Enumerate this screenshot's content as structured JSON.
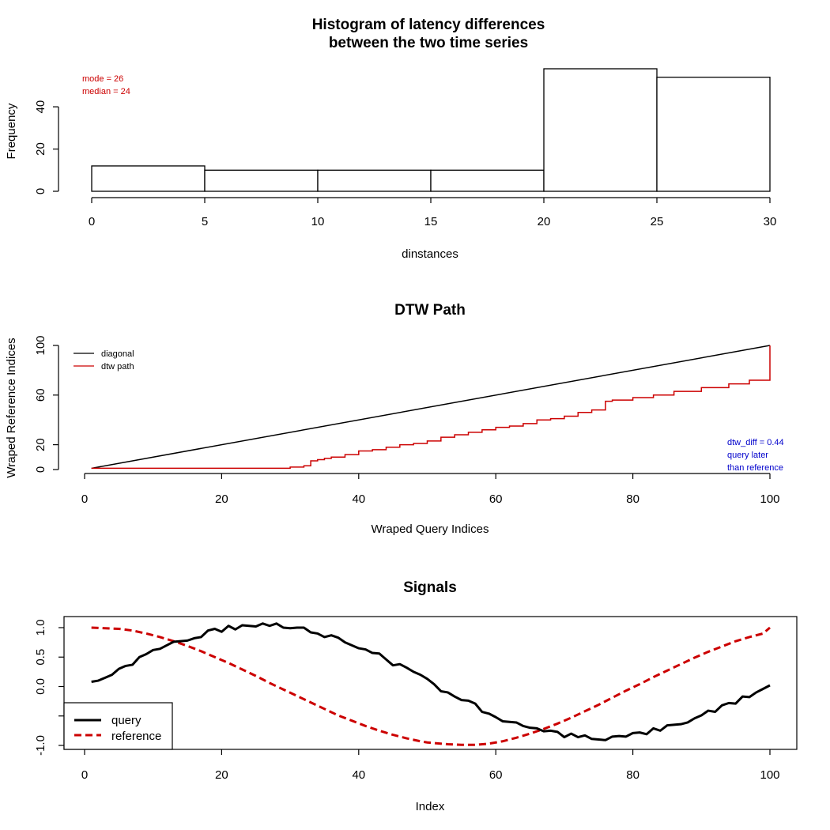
{
  "chart_data": [
    {
      "type": "bar",
      "title_lines": [
        "Histogram of latency differences",
        "between the two time series"
      ],
      "xlabel": "dinstances",
      "ylabel": "Frequency",
      "bins": [
        [
          0,
          5
        ],
        [
          5,
          10
        ],
        [
          10,
          15
        ],
        [
          15,
          20
        ],
        [
          20,
          25
        ],
        [
          25,
          30
        ]
      ],
      "values": [
        12,
        10,
        10,
        10,
        58,
        54
      ],
      "xticks": [
        0,
        5,
        10,
        15,
        20,
        25,
        30
      ],
      "yticks": [
        0,
        20,
        40
      ],
      "xlim": [
        0,
        30
      ],
      "ylim": [
        0,
        58
      ],
      "annotations": [
        {
          "text": "mode = 26",
          "color": "#cc0000"
        },
        {
          "text": "median = 24",
          "color": "#cc0000"
        }
      ]
    },
    {
      "type": "line",
      "title": "DTW Path",
      "xlabel": "Wraped Query Indices",
      "ylabel": "Wraped Reference Indices",
      "xticks": [
        0,
        20,
        40,
        60,
        80,
        100
      ],
      "yticks": [
        0,
        20,
        60,
        100
      ],
      "xlim": [
        1,
        100
      ],
      "ylim": [
        1,
        100
      ],
      "legend_position": "top-left",
      "series": [
        {
          "name": "diagonal",
          "color": "#000000",
          "x": [
            1,
            100
          ],
          "y": [
            1,
            100
          ]
        },
        {
          "name": "dtw path",
          "color": "#cc0000",
          "x": [
            1,
            29,
            30,
            32,
            33,
            34,
            35,
            36,
            38,
            40,
            42,
            44,
            46,
            48,
            50,
            52,
            54,
            56,
            58,
            60,
            62,
            64,
            66,
            68,
            70,
            72,
            74,
            76,
            77,
            80,
            83,
            86,
            90,
            94,
            97,
            100,
            100
          ],
          "y": [
            1,
            1,
            2,
            3,
            7,
            8,
            9,
            10,
            12,
            15,
            16,
            18,
            20,
            21,
            23,
            26,
            28,
            30,
            32,
            34,
            35,
            37,
            40,
            41,
            43,
            46,
            48,
            55,
            56,
            58,
            60,
            63,
            66,
            69,
            72,
            75,
            100
          ]
        }
      ],
      "annotations": [
        {
          "text": "dtw_diff = 0.44",
          "color": "#0000cc"
        },
        {
          "text": "query later",
          "color": "#0000cc"
        },
        {
          "text": "than reference",
          "color": "#0000cc"
        }
      ]
    },
    {
      "type": "line",
      "title": "Signals",
      "xlabel": "Index",
      "ylabel": "",
      "xticks": [
        0,
        20,
        40,
        60,
        80,
        100
      ],
      "yticks": [
        -1.0,
        -0.5,
        0.0,
        0.5,
        1.0
      ],
      "ytick_labels": [
        "-1.0",
        "",
        "0.0",
        "0.5",
        "1.0"
      ],
      "xlim": [
        1,
        100
      ],
      "ylim": [
        -1.0,
        1.1
      ],
      "legend_position": "bottom-left",
      "series": [
        {
          "name": "query",
          "color": "#000000",
          "dash": "solid",
          "x": [
            1,
            2,
            3,
            4,
            5,
            6,
            7,
            8,
            9,
            10,
            11,
            12,
            13,
            14,
            15,
            16,
            17,
            18,
            19,
            20,
            21,
            22,
            23,
            24,
            25,
            26,
            27,
            28,
            29,
            30,
            31,
            32,
            33,
            34,
            35,
            36,
            37,
            38,
            39,
            40,
            41,
            42,
            43,
            44,
            45,
            46,
            47,
            48,
            49,
            50,
            51,
            52,
            53,
            54,
            55,
            56,
            57,
            58,
            59,
            60,
            61,
            62,
            63,
            64,
            65,
            66,
            67,
            68,
            69,
            70,
            71,
            72,
            73,
            74,
            75,
            76,
            77,
            78,
            79,
            80,
            81,
            82,
            83,
            84,
            85,
            86,
            87,
            88,
            89,
            90,
            91,
            92,
            93,
            94,
            95,
            96,
            97,
            98,
            99,
            100
          ],
          "y": [
            0.08,
            0.1,
            0.15,
            0.2,
            0.3,
            0.35,
            0.37,
            0.5,
            0.55,
            0.62,
            0.64,
            0.7,
            0.76,
            0.77,
            0.78,
            0.82,
            0.84,
            0.95,
            0.98,
            0.93,
            1.03,
            0.97,
            1.04,
            1.03,
            1.02,
            1.07,
            1.03,
            1.07,
            1.0,
            0.99,
            1.0,
            1.0,
            0.92,
            0.9,
            0.84,
            0.87,
            0.83,
            0.75,
            0.7,
            0.65,
            0.63,
            0.57,
            0.56,
            0.46,
            0.36,
            0.38,
            0.32,
            0.25,
            0.2,
            0.13,
            0.04,
            -0.08,
            -0.1,
            -0.17,
            -0.23,
            -0.24,
            -0.29,
            -0.43,
            -0.46,
            -0.52,
            -0.59,
            -0.6,
            -0.61,
            -0.67,
            -0.7,
            -0.71,
            -0.76,
            -0.75,
            -0.77,
            -0.86,
            -0.8,
            -0.86,
            -0.83,
            -0.89,
            -0.9,
            -0.91,
            -0.85,
            -0.84,
            -0.85,
            -0.79,
            -0.78,
            -0.81,
            -0.71,
            -0.75,
            -0.66,
            -0.65,
            -0.64,
            -0.61,
            -0.54,
            -0.49,
            -0.41,
            -0.43,
            -0.32,
            -0.28,
            -0.29,
            -0.17,
            -0.18,
            -0.1,
            -0.04,
            0.02
          ]
        },
        {
          "name": "reference",
          "color": "#cc0000",
          "dash": "dashed",
          "x": [
            1,
            3,
            5,
            7,
            9,
            11,
            13,
            15,
            17,
            19,
            21,
            23,
            25,
            27,
            29,
            31,
            33,
            35,
            37,
            39,
            41,
            43,
            45,
            47,
            49,
            50,
            51,
            53,
            55,
            57,
            59,
            61,
            63,
            65,
            67,
            69,
            71,
            73,
            75,
            77,
            79,
            81,
            83,
            85,
            87,
            89,
            91,
            93,
            95,
            97,
            99,
            100
          ],
          "y": [
            1.0,
            0.99,
            0.98,
            0.95,
            0.9,
            0.84,
            0.77,
            0.69,
            0.6,
            0.5,
            0.4,
            0.29,
            0.18,
            0.06,
            -0.05,
            -0.16,
            -0.27,
            -0.38,
            -0.49,
            -0.58,
            -0.67,
            -0.75,
            -0.82,
            -0.88,
            -0.93,
            -0.95,
            -0.96,
            -0.98,
            -0.99,
            -0.99,
            -0.97,
            -0.93,
            -0.87,
            -0.8,
            -0.72,
            -0.63,
            -0.53,
            -0.42,
            -0.31,
            -0.19,
            -0.07,
            0.04,
            0.16,
            0.27,
            0.38,
            0.49,
            0.59,
            0.68,
            0.77,
            0.84,
            0.9,
            1.0
          ]
        }
      ]
    }
  ]
}
